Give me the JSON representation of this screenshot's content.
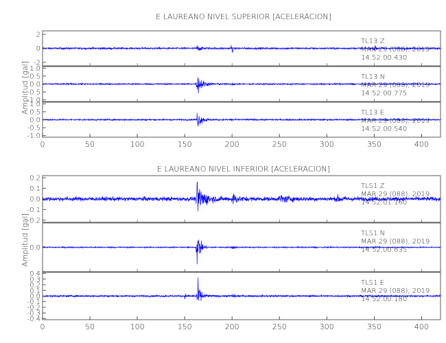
{
  "chart_data": [
    {
      "type": "line",
      "title": "E LAUREANO NIVEL SUPERIOR [ACELERACION]",
      "ylabel": "Amplitud [gal]",
      "xlim": [
        0,
        420
      ],
      "xticks": [
        0,
        50,
        100,
        150,
        200,
        250,
        300,
        350,
        400
      ],
      "line_color": "#0000ff",
      "traces": [
        {
          "station": "TL13",
          "component": "Z",
          "date": "MAR 29 (088), 2019",
          "time": "14:52:00.430",
          "ylim": [
            -2.5,
            2.5
          ],
          "yticks": [
            2,
            0,
            -2
          ],
          "ytick_labels": [
            "2",
            "0",
            "-2"
          ],
          "noise": 0.17,
          "events": [
            {
              "t": 163,
              "a": 0.55,
              "dur": 10
            },
            {
              "t": 200,
              "a": 2.6,
              "dur": 0.8
            },
            {
              "t": 350,
              "a": 0.5,
              "dur": 8
            }
          ]
        },
        {
          "station": "TL13",
          "component": "N",
          "date": "MAR 29 (088), 2019",
          "time": "14:52:00.775",
          "ylim": [
            -1.1,
            1.1
          ],
          "yticks": [
            1.0,
            0.5,
            0.0,
            -0.5,
            -1.0
          ],
          "ytick_labels": [
            "1.0",
            "0.5",
            "0.0",
            "-0.5",
            "-1.0"
          ],
          "noise": 0.06,
          "events": [
            {
              "t": 163,
              "a": 0.85,
              "dur": 16
            },
            {
              "t": 200,
              "a": 0.2,
              "dur": 4
            }
          ]
        },
        {
          "station": "TL13",
          "component": "E",
          "date": "MAR 29 (088), 2019",
          "time": "14:52:00.540",
          "ylim": [
            -1.1,
            1.1
          ],
          "yticks": [
            1.0,
            0.5,
            0.0,
            -0.5,
            -1.0
          ],
          "ytick_labels": [
            "1.0",
            "0.5",
            "0.0",
            "-0.5",
            "-1.0"
          ],
          "noise": 0.06,
          "events": [
            {
              "t": 163,
              "a": 0.7,
              "dur": 14
            },
            {
              "t": 200,
              "a": 0.15,
              "dur": 4
            }
          ]
        }
      ]
    },
    {
      "type": "line",
      "title": "E LAUREANO NIVEL INFERIOR [ACELERACION]",
      "ylabel": "Amplitud [gal]",
      "xlim": [
        0,
        420
      ],
      "xticks": [
        0,
        50,
        100,
        150,
        200,
        250,
        300,
        350,
        400
      ],
      "line_color": "#0000ff",
      "traces": [
        {
          "station": "TLS1",
          "component": "Z",
          "date": "MAR 29 (088), 2019",
          "time": "14:52:01.160",
          "ylim": [
            -0.22,
            0.22
          ],
          "yticks": [
            0.2,
            0.1,
            0.0,
            -0.1,
            -0.2
          ],
          "ytick_labels": [
            "0.2",
            "0.1",
            "0.0",
            "-0.1",
            "-0.2"
          ],
          "noise": 0.025,
          "events": [
            {
              "t": 163,
              "a": 0.19,
              "dur": 22
            },
            {
              "t": 200,
              "a": 0.07,
              "dur": 14
            },
            {
              "t": 250,
              "a": 0.04,
              "dur": 30
            },
            {
              "t": 310,
              "a": 0.03,
              "dur": 20
            }
          ]
        },
        {
          "station": "TLS1",
          "component": "N",
          "date": "MAR 29 (088), 2019",
          "time": "14:52:00.635",
          "ylim": [
            -0.45,
            0.45
          ],
          "yticks": [
            0.0
          ],
          "ytick_labels": [
            "0.0"
          ],
          "noise": 0.015,
          "events": [
            {
              "t": 163,
              "a": 0.45,
              "dur": 10
            },
            {
              "t": 200,
              "a": 0.05,
              "dur": 8
            }
          ]
        },
        {
          "station": "TLS1",
          "component": "E",
          "date": "MAR 29 (088), 2019",
          "time": "14:52:00.180",
          "ylim": [
            -0.42,
            0.42
          ],
          "yticks": [
            0.4,
            0.3,
            0.2,
            0.1,
            0.0,
            -0.1,
            -0.2,
            -0.3,
            -0.4
          ],
          "ytick_labels": [
            "0.4",
            "0.3",
            "0.2",
            "0.1",
            "0.0",
            "-0.1",
            "-0.2",
            "-0.3",
            "-0.4"
          ],
          "noise": 0.02,
          "events": [
            {
              "t": 163,
              "a": 0.4,
              "dur": 10
            },
            {
              "t": 150,
              "a": 0.05,
              "dur": 6
            },
            {
              "t": 200,
              "a": 0.05,
              "dur": 8
            }
          ]
        }
      ]
    }
  ]
}
